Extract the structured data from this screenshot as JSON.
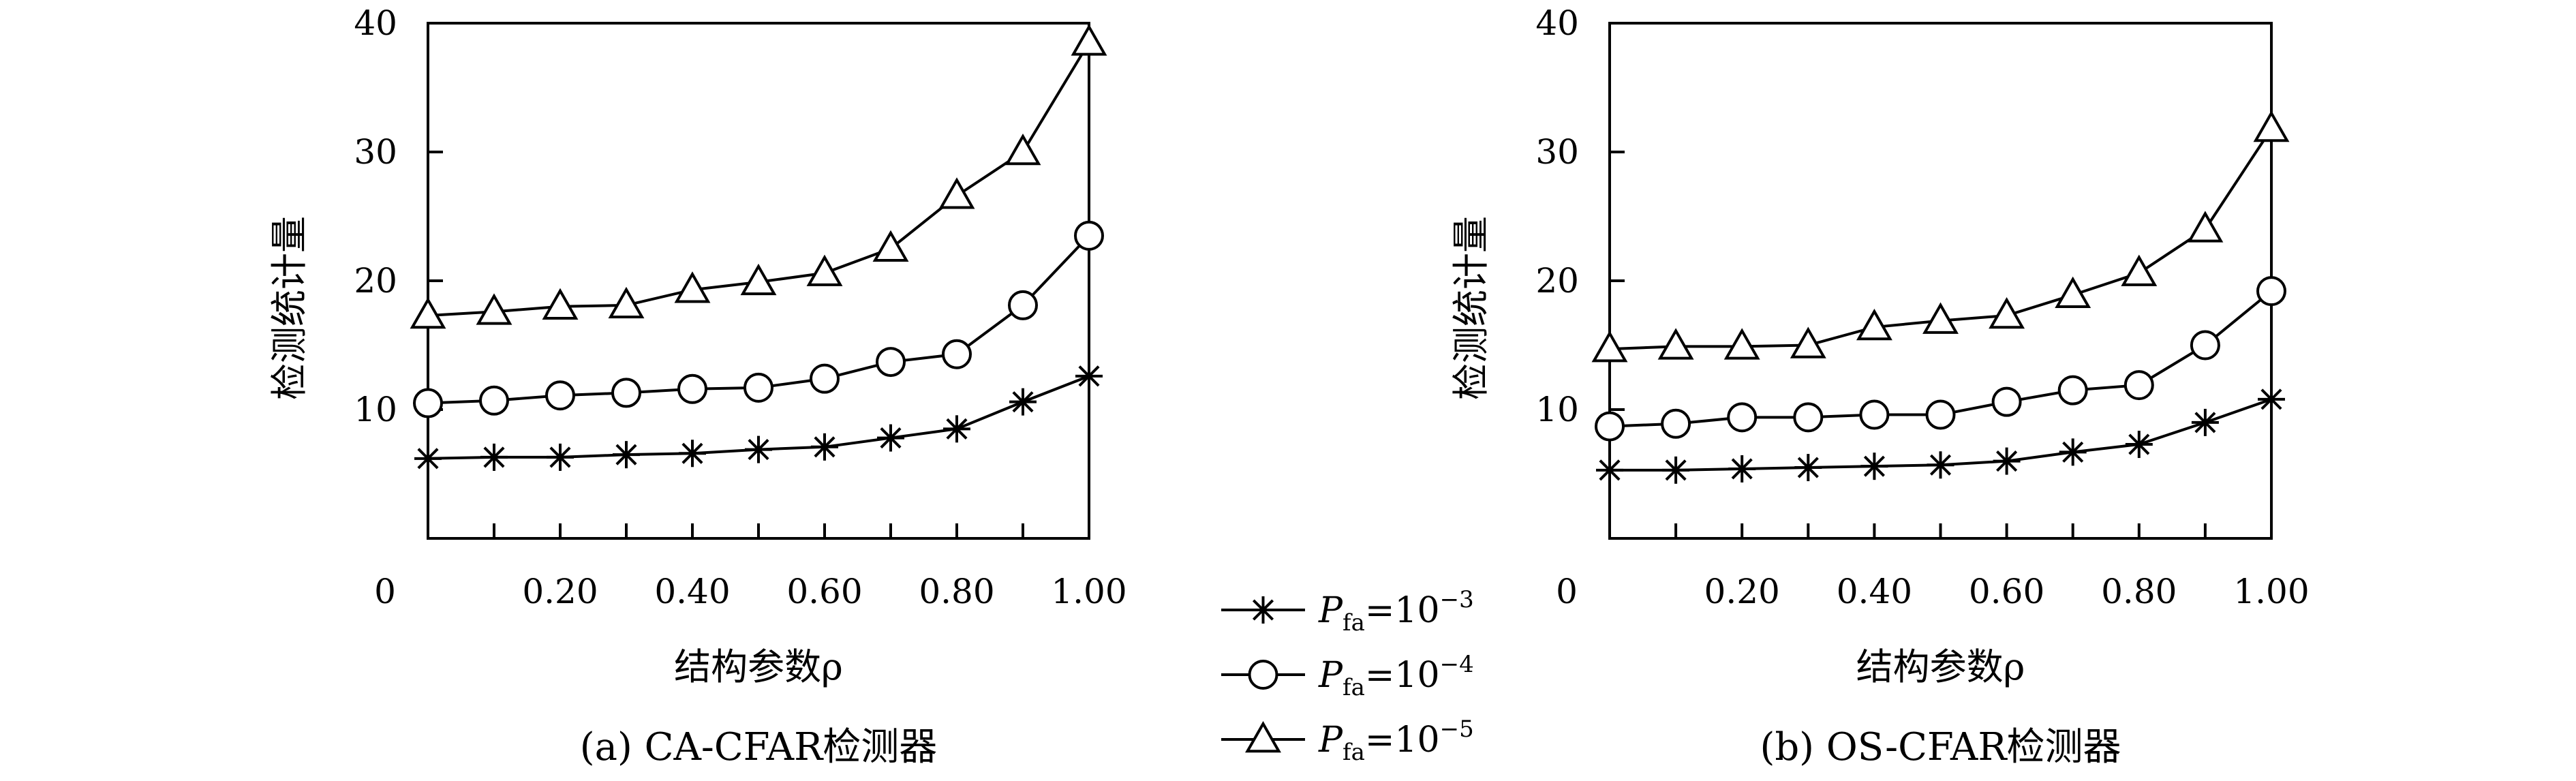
{
  "chart_data": [
    {
      "type": "line",
      "caption": "(a) CA-CFAR检测器",
      "xlabel": "结构参数ρ",
      "ylabel": "检测统计量",
      "xlim": [
        0,
        1.0
      ],
      "ylim": [
        0,
        40
      ],
      "x_tick_labels": [
        "0",
        "0.20",
        "0.40",
        "0.60",
        "0.80",
        "1.00"
      ],
      "y_tick_labels": [
        "10",
        "20",
        "30",
        "40"
      ],
      "x": [
        0,
        0.1,
        0.2,
        0.3,
        0.4,
        0.5,
        0.6,
        0.7,
        0.8,
        0.9,
        1.0
      ],
      "series": [
        {
          "name": "Pfa=10−3",
          "marker": "star",
          "values": [
            6.2,
            6.3,
            6.3,
            6.5,
            6.6,
            6.9,
            7.1,
            7.8,
            8.5,
            10.6,
            12.6
          ]
        },
        {
          "name": "Pfa=10−4",
          "marker": "circle",
          "values": [
            10.5,
            10.7,
            11.1,
            11.3,
            11.6,
            11.7,
            12.4,
            13.7,
            14.3,
            18.1,
            23.5
          ]
        },
        {
          "name": "Pfa=10−5",
          "marker": "triangle",
          "values": [
            17.3,
            17.6,
            18.0,
            18.1,
            19.3,
            19.9,
            20.6,
            22.5,
            26.6,
            30.0,
            38.5
          ]
        }
      ]
    },
    {
      "type": "line",
      "caption": "(b) OS-CFAR检测器",
      "xlabel": "结构参数ρ",
      "ylabel": "检测统计量",
      "xlim": [
        0,
        1.0
      ],
      "ylim": [
        0,
        40
      ],
      "x_tick_labels": [
        "0",
        "0.20",
        "0.40",
        "0.60",
        "0.80",
        "1.00"
      ],
      "y_tick_labels": [
        "10",
        "20",
        "30",
        "40"
      ],
      "x": [
        0,
        0.1,
        0.2,
        0.3,
        0.4,
        0.5,
        0.6,
        0.7,
        0.8,
        0.9,
        1.0
      ],
      "series": [
        {
          "name": "Pfa=10−3",
          "marker": "star",
          "values": [
            5.3,
            5.3,
            5.4,
            5.5,
            5.6,
            5.7,
            6.0,
            6.7,
            7.3,
            9.0,
            10.8
          ]
        },
        {
          "name": "Pfa=10−4",
          "marker": "circle",
          "values": [
            8.7,
            8.9,
            9.4,
            9.4,
            9.6,
            9.6,
            10.6,
            11.5,
            11.9,
            15.0,
            19.2
          ]
        },
        {
          "name": "Pfa=10−5",
          "marker": "triangle",
          "values": [
            14.7,
            14.9,
            14.9,
            15.0,
            16.4,
            16.9,
            17.3,
            18.9,
            20.6,
            24.0,
            31.8
          ]
        }
      ]
    }
  ],
  "legend": {
    "placement": "between-panels",
    "entries": [
      {
        "marker": "star",
        "p": "P",
        "sub": "fa",
        "eq": "=10",
        "sup": "−3"
      },
      {
        "marker": "circle",
        "p": "P",
        "sub": "fa",
        "eq": "=10",
        "sup": "−4"
      },
      {
        "marker": "triangle",
        "p": "P",
        "sub": "fa",
        "eq": "=10",
        "sup": "−5"
      }
    ]
  },
  "colors": {
    "line": "#000000",
    "background": "#ffffff"
  }
}
